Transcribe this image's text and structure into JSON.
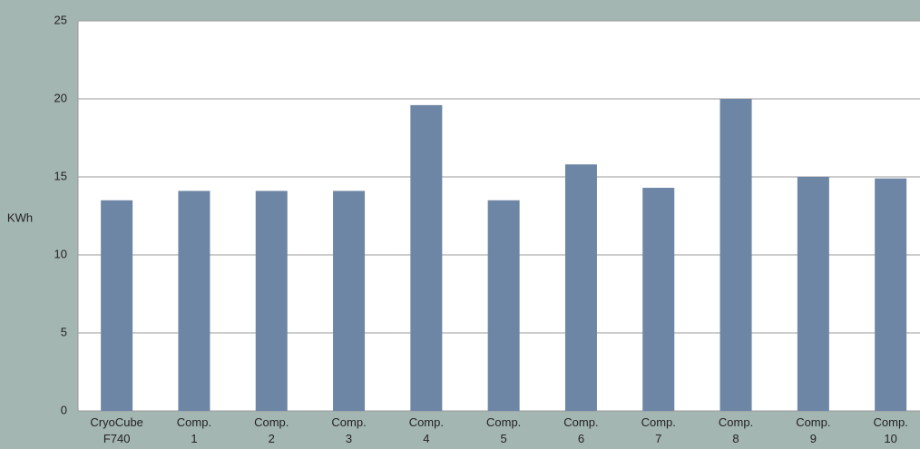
{
  "chart_data": {
    "type": "bar",
    "y_label": "KWh",
    "categories": [
      "CryoCube F740",
      "Comp. 1",
      "Comp. 2",
      "Comp. 3",
      "Comp. 4",
      "Comp. 5",
      "Comp. 6",
      "Comp. 7",
      "Comp. 8",
      "Comp. 9",
      "Comp. 10"
    ],
    "values": [
      13.5,
      14.1,
      14.1,
      14.1,
      19.6,
      13.5,
      15.8,
      14.3,
      20.0,
      15.0,
      14.9
    ],
    "color": "#6d86a5",
    "ylim": [
      0,
      25
    ],
    "yticks": [
      0,
      5,
      10,
      15,
      20,
      25
    ],
    "grid": true
  }
}
